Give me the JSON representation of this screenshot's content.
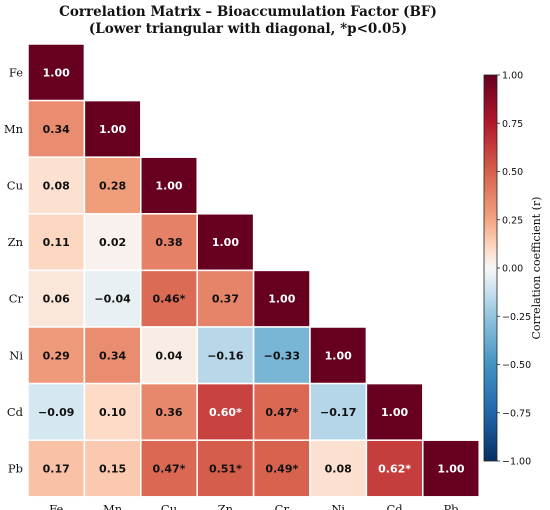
{
  "chart_data": {
    "type": "heatmap",
    "title": "Correlation Matrix – Bioaccumulation Factor (BF)",
    "subtitle": "(Lower triangular with diagonal, *p<0.05)",
    "variables": [
      "Fe",
      "Mn",
      "Cu",
      "Zn",
      "Cr",
      "Ni",
      "Cd",
      "Pb"
    ],
    "matrix": [
      [
        1.0
      ],
      [
        0.34,
        1.0
      ],
      [
        0.08,
        0.28,
        1.0
      ],
      [
        0.11,
        0.02,
        0.38,
        1.0
      ],
      [
        0.06,
        -0.04,
        0.46,
        0.37,
        1.0
      ],
      [
        0.29,
        0.34,
        0.04,
        -0.16,
        -0.33,
        1.0
      ],
      [
        -0.09,
        0.1,
        0.36,
        0.6,
        0.47,
        -0.17,
        1.0
      ],
      [
        0.17,
        0.15,
        0.47,
        0.51,
        0.49,
        0.08,
        0.62,
        1.0
      ]
    ],
    "labels": [
      [
        "1.00"
      ],
      [
        "0.34",
        "1.00"
      ],
      [
        "0.08",
        "0.28",
        "1.00"
      ],
      [
        "0.11",
        "0.02",
        "0.38",
        "1.00"
      ],
      [
        "0.06",
        "−0.04",
        "0.46*",
        "0.37",
        "1.00"
      ],
      [
        "0.29",
        "0.34",
        "0.04",
        "−0.16",
        "−0.33",
        "1.00"
      ],
      [
        "−0.09",
        "0.10",
        "0.36",
        "0.60*",
        "0.47*",
        "−0.17",
        "1.00"
      ],
      [
        "0.17",
        "0.15",
        "0.47*",
        "0.51*",
        "0.49*",
        "0.08",
        "0.62*",
        "1.00"
      ]
    ],
    "colorbar": {
      "label": "Correlation coefficient (r)",
      "range": [
        -1.0,
        1.0
      ],
      "ticks": [
        "1.00",
        "0.75",
        "0.50",
        "0.25",
        "0.00",
        "−0.25",
        "−0.50",
        "−0.75",
        "−1.00"
      ],
      "tick_values": [
        1.0,
        0.75,
        0.5,
        0.25,
        0.0,
        -0.25,
        -0.5,
        -0.75,
        -1.0
      ],
      "colormap": "RdBu_r"
    },
    "colors": {
      "neg_end": "#053061",
      "neutral": "#f7f7f7",
      "pos_end": "#67001f",
      "grid": "#ffffff"
    }
  }
}
